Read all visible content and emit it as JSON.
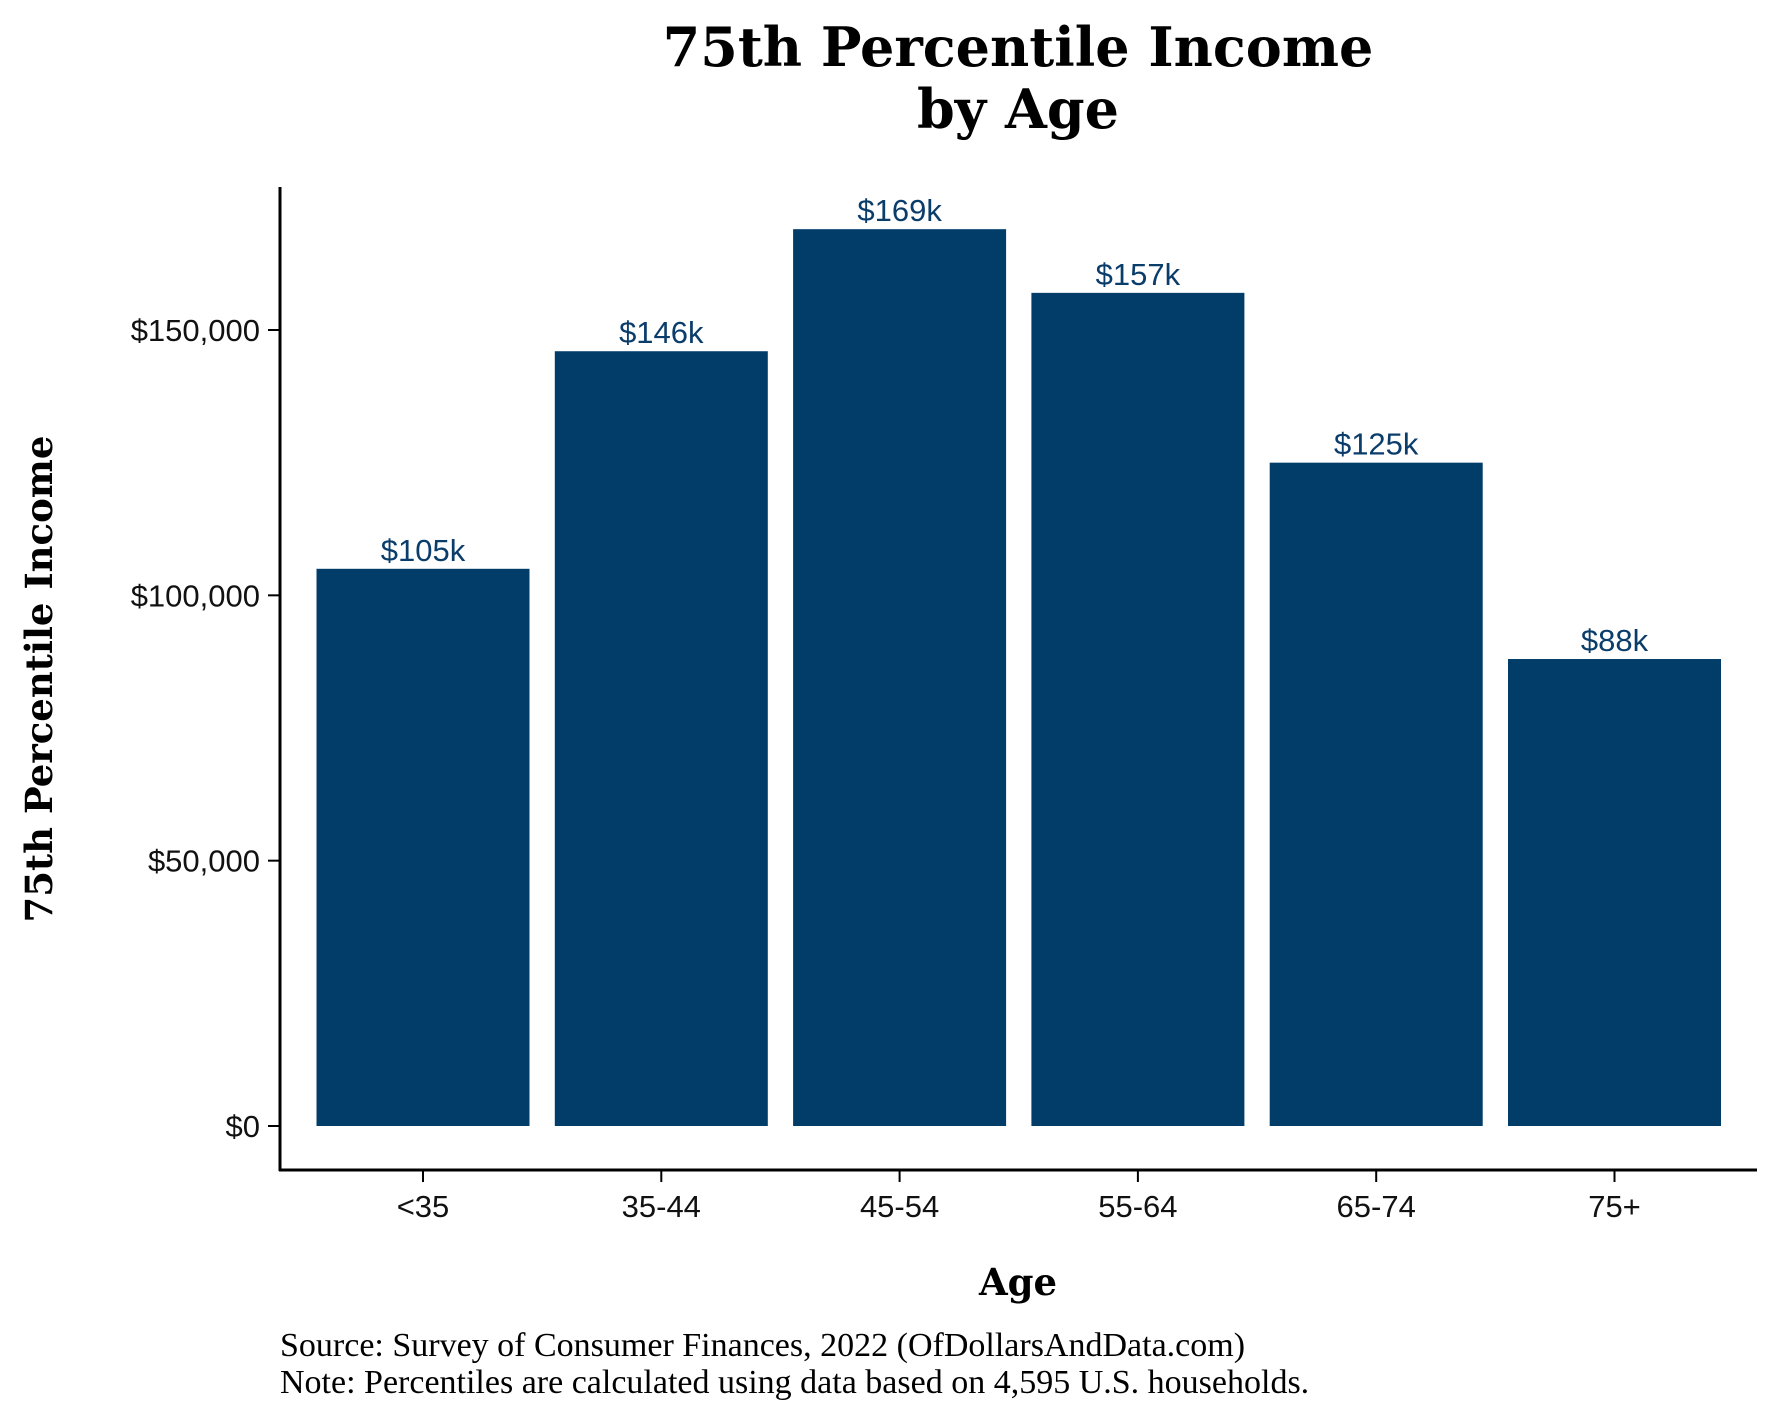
{
  "chart_data": {
    "type": "bar",
    "title": [
      "75th Percentile Income",
      "by Age"
    ],
    "xlabel": "Age",
    "ylabel": "75th Percentile Income",
    "categories": [
      "<35",
      "35-44",
      "45-54",
      "55-64",
      "65-74",
      "75+"
    ],
    "values": [
      105000,
      146000,
      169000,
      157000,
      125000,
      88000
    ],
    "data_labels": [
      "$105k",
      "$146k",
      "$169k",
      "$157k",
      "$125k",
      "$88k"
    ],
    "ylim": [
      0,
      175000
    ],
    "yticks": [
      0,
      50000,
      100000,
      150000
    ],
    "ytick_labels": [
      "$0",
      "$50,000",
      "$100,000",
      "$150,000"
    ],
    "grid": false,
    "bar_color": "#023d6a",
    "label_color": "#0b3d6b",
    "source": "Source:  Survey of Consumer Finances, 2022 (OfDollarsAndData.com)",
    "note": "Note: Percentiles are calculated using data based on 4,595 U.S. households."
  }
}
